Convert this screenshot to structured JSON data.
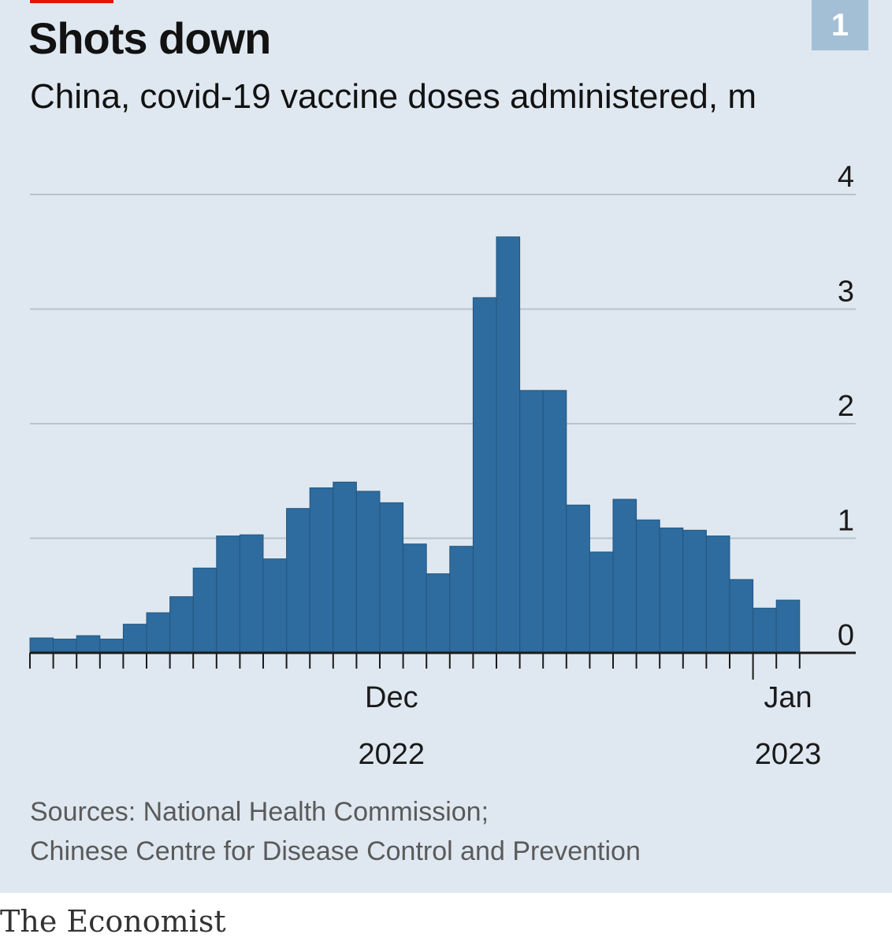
{
  "header": {
    "title": "Shots down",
    "subtitle": "China, covid-19 vaccine doses administered, m",
    "chart_number": "1"
  },
  "footer": {
    "sources_line1": "Sources: National Health Commission;",
    "sources_line2": "Chinese Centre for Disease Control and Prevention",
    "brand": "The Economist"
  },
  "colors": {
    "bar": "#2e6b9e",
    "background": "#dfe8f0",
    "grid": "#b6c3ce",
    "badge": "#a3bfd6",
    "accent": "#e3120b"
  },
  "chart_data": {
    "type": "bar",
    "title": "Shots down",
    "subtitle": "China, covid-19 vaccine doses administered, m",
    "unit": "m",
    "x_periods": [
      "1",
      "2",
      "3",
      "4",
      "5",
      "6",
      "7",
      "8",
      "9",
      "10",
      "11",
      "12",
      "13",
      "14",
      "15",
      "16",
      "17",
      "18",
      "19",
      "20",
      "21",
      "22",
      "23",
      "24",
      "25",
      "26",
      "27",
      "28",
      "29",
      "30",
      "31",
      "32",
      "33"
    ],
    "values": [
      0.13,
      0.12,
      0.15,
      0.12,
      0.25,
      0.35,
      0.49,
      0.74,
      1.02,
      1.03,
      0.82,
      1.26,
      1.44,
      1.49,
      1.41,
      1.31,
      0.95,
      0.69,
      0.93,
      3.1,
      3.63,
      2.29,
      2.29,
      1.29,
      0.88,
      1.34,
      1.16,
      1.09,
      1.07,
      1.02,
      0.64,
      0.39,
      0.46
    ],
    "ylim": [
      0,
      4
    ],
    "y_ticks": [
      0,
      1,
      2,
      3,
      4
    ],
    "grid": true,
    "y_axis_side": "right",
    "x_tick_labels": [
      {
        "label": "Dec",
        "sublabel": "2022",
        "at_period": 16
      },
      {
        "label": "Jan",
        "sublabel": "2023",
        "at_period": 33
      }
    ],
    "year_divider_before_period": 32
  }
}
